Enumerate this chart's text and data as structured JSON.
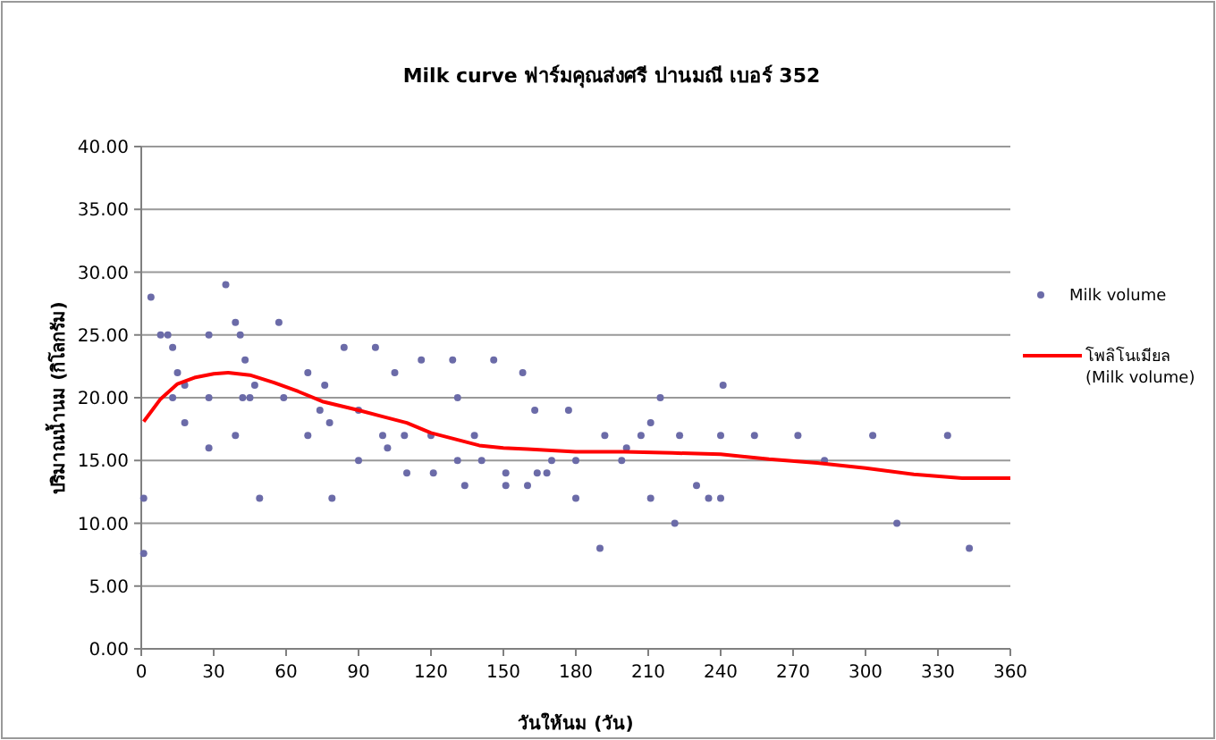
{
  "chart_data": {
    "type": "scatter",
    "title": "Milk curve ฟาร์มคุณส่งศรี ปานมณี เบอร์ 352",
    "xlabel": "วันให้นม (วัน)",
    "ylabel": "ปริมาณน้ำนม (กิโลกรัม)",
    "xlim": [
      0,
      360
    ],
    "xticks": [
      0,
      30,
      60,
      90,
      120,
      150,
      180,
      210,
      240,
      270,
      300,
      330,
      360
    ],
    "ylim": [
      0,
      40
    ],
    "yticks": [
      {
        "value": 0,
        "label": "0.00"
      },
      {
        "value": 5,
        "label": "5.00"
      },
      {
        "value": 10,
        "label": "10.00"
      },
      {
        "value": 15,
        "label": "15.00"
      },
      {
        "value": 20,
        "label": "20.00"
      },
      {
        "value": 25,
        "label": "25.00"
      },
      {
        "value": 30,
        "label": "30.00"
      },
      {
        "value": 35,
        "label": "35.00"
      },
      {
        "value": 40,
        "label": "40.00"
      }
    ],
    "grid": "y",
    "legend": "right",
    "series": [
      {
        "name": "Milk volume",
        "marker": "circle",
        "color": "#6b6ba8",
        "x": [
          1,
          1,
          4,
          8,
          11,
          13,
          13,
          15,
          18,
          18,
          28,
          28,
          28,
          35,
          39,
          39,
          41,
          43,
          42,
          45,
          47,
          49,
          57,
          59,
          69,
          69,
          74,
          76,
          78,
          79,
          84,
          90,
          90,
          97,
          100,
          102,
          105,
          109,
          110,
          116,
          120,
          121,
          129,
          131,
          131,
          134,
          138,
          141,
          146,
          151,
          151,
          158,
          160,
          163,
          164,
          168,
          170,
          177,
          180,
          180,
          190,
          192,
          199,
          201,
          207,
          211,
          211,
          215,
          221,
          223,
          230,
          235,
          240,
          240,
          241,
          254,
          272,
          283,
          303,
          313,
          334,
          343
        ],
        "values": [
          12,
          7.6,
          28,
          25,
          25,
          24,
          20,
          22,
          21,
          18,
          25,
          20,
          16,
          29,
          26,
          17,
          25,
          23,
          20,
          20,
          21,
          12,
          26,
          20,
          22,
          17,
          19,
          21,
          18,
          12,
          24,
          19,
          15,
          24,
          17,
          16,
          22,
          17,
          14,
          23,
          17,
          14,
          23,
          20,
          15,
          13,
          17,
          15,
          23,
          14,
          13,
          22,
          13,
          19,
          14,
          14,
          15,
          19,
          15,
          12,
          8,
          17,
          15,
          16,
          17,
          18,
          12,
          20,
          10,
          17,
          13,
          12,
          17,
          12,
          21,
          17,
          17,
          15,
          17,
          10,
          17,
          8
        ]
      },
      {
        "name": "โพลิโนเมียล (Milk volume)",
        "type": "line",
        "color": "#ff0000",
        "x": [
          1,
          8,
          15,
          22,
          30,
          36,
          45,
          55,
          65,
          75,
          90,
          100,
          110,
          120,
          130,
          140,
          150,
          160,
          180,
          200,
          220,
          240,
          260,
          280,
          300,
          320,
          340,
          360
        ],
        "values": [
          18.1,
          19.9,
          21.1,
          21.6,
          21.9,
          22.0,
          21.8,
          21.2,
          20.5,
          19.7,
          19.0,
          18.5,
          18.0,
          17.2,
          16.7,
          16.2,
          16.0,
          15.9,
          15.7,
          15.7,
          15.6,
          15.5,
          15.1,
          14.8,
          14.4,
          13.9,
          13.6,
          13.6
        ]
      }
    ]
  }
}
